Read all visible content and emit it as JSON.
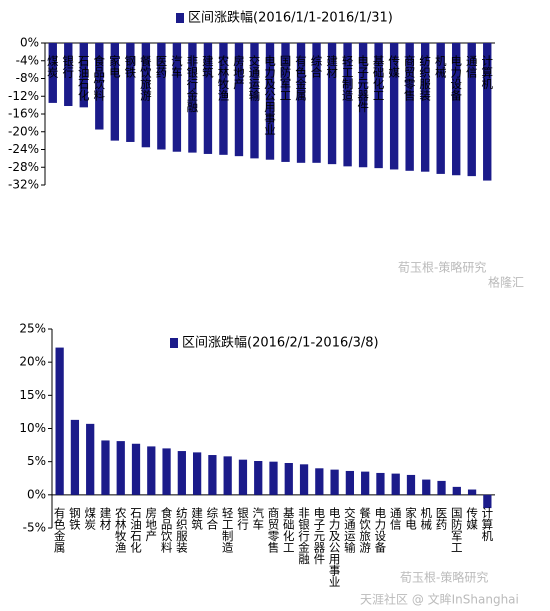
{
  "chart_data": [
    {
      "type": "bar",
      "legend": "区间涨跌幅(2016/1/1-2016/1/31)",
      "color": "#1b1b8a",
      "categories": [
        "煤炭",
        "银行",
        "石油石化",
        "食品饮料",
        "家电",
        "钢铁",
        "餐饮旅游",
        "医药",
        "汽车",
        "非银行金融",
        "建筑",
        "农林牧渔",
        "房地产",
        "交通运输",
        "电力及公用事业",
        "国防军工",
        "有色金属",
        "综合",
        "建材",
        "轻工制造",
        "电子元器件",
        "基础化工",
        "传媒",
        "商贸零售",
        "纺织服装",
        "机械",
        "电力设备",
        "通信",
        "计算机"
      ],
      "values": [
        -13.5,
        -14.2,
        -14.5,
        -19.5,
        -22,
        -22.3,
        -23.5,
        -24,
        -24.5,
        -24.7,
        -25,
        -25.2,
        -25.5,
        -26,
        -26.3,
        -26.8,
        -27,
        -27,
        -27.3,
        -27.8,
        -28,
        -28.2,
        -28.5,
        -28.8,
        -29,
        -29.5,
        -29.8,
        -30,
        -31
      ],
      "ylim": [
        -32,
        0
      ],
      "yticks": [
        {
          "value": 0,
          "label": "0%"
        },
        {
          "value": -4,
          "label": "-4%"
        },
        {
          "value": -8,
          "label": "-8%"
        },
        {
          "value": -12,
          "label": "-12%"
        },
        {
          "value": -16,
          "label": "-16%"
        },
        {
          "value": -20,
          "label": "-20%"
        },
        {
          "value": -24,
          "label": "-24%"
        },
        {
          "value": -28,
          "label": "-28%"
        },
        {
          "value": -32,
          "label": "-32%"
        }
      ]
    },
    {
      "type": "bar",
      "legend": "区间涨跌幅(2016/2/1-2016/3/8)",
      "color": "#1b1b8a",
      "categories": [
        "有色金属",
        "钢铁",
        "煤炭",
        "建材",
        "农林牧渔",
        "石油石化",
        "房地产",
        "食品饮料",
        "纺织服装",
        "建筑",
        "综合",
        "轻工制造",
        "银行",
        "汽车",
        "商贸零售",
        "基础化工",
        "非银行金融",
        "电子元器件",
        "电力及公用事业",
        "交通运输",
        "餐饮旅游",
        "电力设备",
        "通信",
        "家电",
        "机械",
        "医药",
        "国防军工",
        "传媒",
        "计算机"
      ],
      "values": [
        22.2,
        11.3,
        10.7,
        8.2,
        8.1,
        7.7,
        7.3,
        7.0,
        6.6,
        6.4,
        6.0,
        5.8,
        5.3,
        5.1,
        5.0,
        4.8,
        4.6,
        4.0,
        3.8,
        3.6,
        3.5,
        3.3,
        3.2,
        3.0,
        2.3,
        2.1,
        1.2,
        0.8,
        -2.0
      ],
      "ylim": [
        -5,
        25
      ],
      "yticks": [
        {
          "value": 25,
          "label": "25%"
        },
        {
          "value": 20,
          "label": "20%"
        },
        {
          "value": 15,
          "label": "15%"
        },
        {
          "value": 10,
          "label": "10%"
        },
        {
          "value": 5,
          "label": "5%"
        },
        {
          "value": 0,
          "label": "0%"
        },
        {
          "value": -5,
          "label": "-5%"
        }
      ]
    }
  ],
  "watermarks": [
    "荀玉根-策略研究",
    "格隆汇",
    "荀玉根-策略研究",
    "天涯社区 @ 文眸InShanghai"
  ]
}
